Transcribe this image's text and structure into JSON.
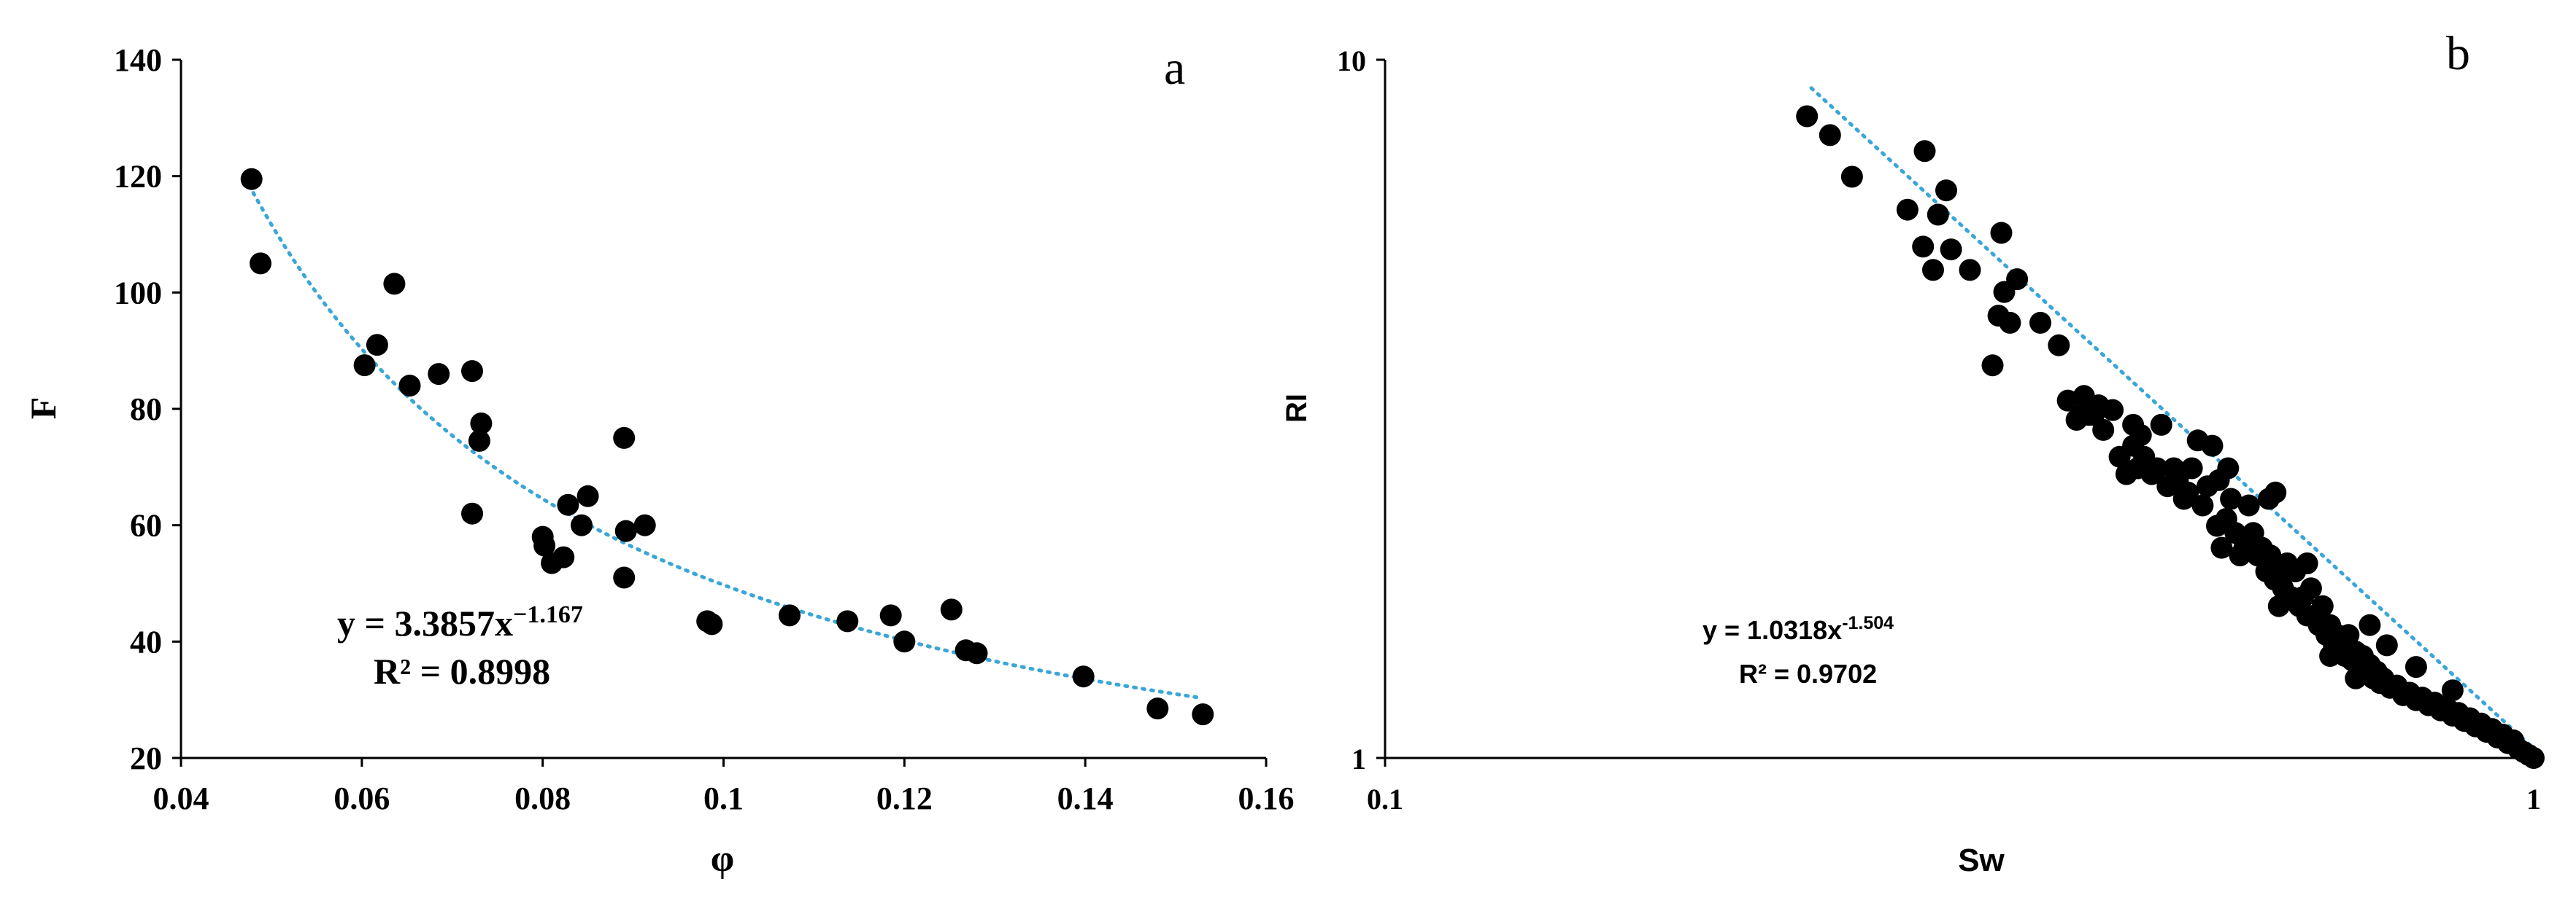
{
  "chart_data": [
    {
      "type": "scatter",
      "panel_label": "a",
      "xlabel": "φ",
      "ylabel": "F",
      "xlim": [
        0.04,
        0.16
      ],
      "ylim": [
        20,
        140
      ],
      "x_ticks": [
        "0.04",
        "0.06",
        "0.08",
        "0.1",
        "0.12",
        "0.14",
        "0.16"
      ],
      "y_ticks": [
        "20",
        "40",
        "60",
        "80",
        "100",
        "120",
        "140"
      ],
      "x_scale": "linear",
      "y_scale": "linear",
      "grid": false,
      "trendline": {
        "type": "power",
        "a": 3.3857,
        "b": -1.167,
        "x_range": [
          0.048,
          0.153
        ],
        "color": "#3aa6d8",
        "style": "dotted"
      },
      "annotation": {
        "eq_prefix": "y = 3.3857x",
        "eq_exp": "−1.167",
        "r2": "R² = 0.8998"
      },
      "points": [
        [
          0.0478,
          119.5
        ],
        [
          0.0488,
          105
        ],
        [
          0.0603,
          87.5
        ],
        [
          0.0617,
          91
        ],
        [
          0.0636,
          101.5
        ],
        [
          0.0653,
          84
        ],
        [
          0.0685,
          86
        ],
        [
          0.0722,
          86.5
        ],
        [
          0.0732,
          77.5
        ],
        [
          0.073,
          74.5
        ],
        [
          0.0722,
          62
        ],
        [
          0.08,
          58
        ],
        [
          0.0802,
          56.5
        ],
        [
          0.081,
          53.5
        ],
        [
          0.0823,
          54.5
        ],
        [
          0.0828,
          63.5
        ],
        [
          0.0843,
          60
        ],
        [
          0.085,
          65
        ],
        [
          0.089,
          75
        ],
        [
          0.0892,
          59
        ],
        [
          0.089,
          51
        ],
        [
          0.0913,
          60
        ],
        [
          0.0982,
          43.5
        ],
        [
          0.0987,
          43
        ],
        [
          0.1073,
          44.5
        ],
        [
          0.1137,
          43.5
        ],
        [
          0.1185,
          44.5
        ],
        [
          0.12,
          40
        ],
        [
          0.1252,
          45.5
        ],
        [
          0.1268,
          38.5
        ],
        [
          0.128,
          38
        ],
        [
          0.1398,
          34
        ],
        [
          0.148,
          28.5
        ],
        [
          0.153,
          27.5
        ]
      ]
    },
    {
      "type": "scatter",
      "panel_label": "b",
      "xlabel": "Sw",
      "ylabel": "RI",
      "xlim": [
        0.1,
        1
      ],
      "ylim": [
        1,
        10
      ],
      "x_ticks": [
        "0.1",
        "1"
      ],
      "y_ticks": [
        "1",
        "10"
      ],
      "x_scale": "log",
      "y_scale": "log",
      "grid": false,
      "trendline": {
        "type": "power",
        "a": 1.0318,
        "b": -1.504,
        "x_range": [
          0.235,
          1.0
        ],
        "color": "#3aa6d8",
        "style": "dotted"
      },
      "annotation": {
        "eq_prefix": "y = 1.0318x",
        "eq_exp": "-1.504",
        "r2": "R² = 0.9702"
      },
      "points": [
        [
          0.233,
          8.3
        ],
        [
          0.244,
          7.8
        ],
        [
          0.255,
          6.8
        ],
        [
          0.285,
          6.1
        ],
        [
          0.295,
          7.4
        ],
        [
          0.294,
          5.4
        ],
        [
          0.3,
          5.0
        ],
        [
          0.303,
          6.0
        ],
        [
          0.308,
          6.5
        ],
        [
          0.311,
          5.35
        ],
        [
          0.323,
          5.0
        ],
        [
          0.338,
          3.65
        ],
        [
          0.342,
          4.3
        ],
        [
          0.344,
          5.65
        ],
        [
          0.346,
          4.65
        ],
        [
          0.35,
          4.2
        ],
        [
          0.355,
          4.85
        ],
        [
          0.372,
          4.2
        ],
        [
          0.386,
          3.9
        ],
        [
          0.393,
          3.25
        ],
        [
          0.4,
          3.05
        ],
        [
          0.406,
          3.3
        ],
        [
          0.41,
          3.1
        ],
        [
          0.414,
          3.1
        ],
        [
          0.418,
          3.2
        ],
        [
          0.422,
          2.95
        ],
        [
          0.43,
          3.15
        ],
        [
          0.436,
          2.7
        ],
        [
          0.442,
          2.55
        ],
        [
          0.448,
          2.8
        ],
        [
          0.452,
          2.6
        ],
        [
          0.458,
          2.7
        ],
        [
          0.465,
          2.55
        ],
        [
          0.47,
          2.6
        ],
        [
          0.474,
          3.0
        ],
        [
          0.48,
          2.45
        ],
        [
          0.486,
          2.6
        ],
        [
          0.49,
          2.5
        ],
        [
          0.496,
          2.35
        ],
        [
          0.5,
          2.4
        ],
        [
          0.504,
          2.6
        ],
        [
          0.51,
          2.85
        ],
        [
          0.515,
          2.3
        ],
        [
          0.52,
          2.45
        ],
        [
          0.525,
          2.8
        ],
        [
          0.53,
          2.15
        ],
        [
          0.535,
          2.0
        ],
        [
          0.54,
          2.2
        ],
        [
          0.545,
          2.35
        ],
        [
          0.55,
          2.1
        ],
        [
          0.555,
          1.95
        ],
        [
          0.56,
          2.0
        ],
        [
          0.565,
          2.3
        ],
        [
          0.57,
          2.1
        ],
        [
          0.575,
          1.95
        ],
        [
          0.58,
          2.0
        ],
        [
          0.585,
          1.85
        ],
        [
          0.59,
          1.95
        ],
        [
          0.595,
          1.8
        ],
        [
          0.6,
          1.85
        ],
        [
          0.605,
          1.75
        ],
        [
          0.61,
          1.9
        ],
        [
          0.615,
          1.7
        ],
        [
          0.62,
          1.85
        ],
        [
          0.625,
          1.65
        ],
        [
          0.63,
          1.7
        ],
        [
          0.635,
          1.6
        ],
        [
          0.64,
          1.75
        ],
        [
          0.645,
          1.6
        ],
        [
          0.65,
          1.55
        ],
        [
          0.655,
          1.65
        ],
        [
          0.66,
          1.5
        ],
        [
          0.665,
          1.55
        ],
        [
          0.67,
          1.45
        ],
        [
          0.675,
          1.5
        ],
        [
          0.68,
          1.45
        ],
        [
          0.685,
          1.4
        ],
        [
          0.69,
          1.5
        ],
        [
          0.695,
          1.38
        ],
        [
          0.7,
          1.42
        ],
        [
          0.705,
          1.35
        ],
        [
          0.71,
          1.4
        ],
        [
          0.715,
          1.32
        ],
        [
          0.72,
          1.36
        ],
        [
          0.725,
          1.3
        ],
        [
          0.73,
          1.33
        ],
        [
          0.735,
          1.28
        ],
        [
          0.74,
          1.3
        ],
        [
          0.75,
          1.26
        ],
        [
          0.76,
          1.27
        ],
        [
          0.77,
          1.23
        ],
        [
          0.78,
          1.24
        ],
        [
          0.79,
          1.21
        ],
        [
          0.8,
          1.22
        ],
        [
          0.81,
          1.19
        ],
        [
          0.82,
          1.2
        ],
        [
          0.83,
          1.17
        ],
        [
          0.84,
          1.18
        ],
        [
          0.85,
          1.15
        ],
        [
          0.86,
          1.16
        ],
        [
          0.87,
          1.13
        ],
        [
          0.88,
          1.14
        ],
        [
          0.89,
          1.11
        ],
        [
          0.9,
          1.12
        ],
        [
          0.91,
          1.09
        ],
        [
          0.92,
          1.1
        ],
        [
          0.93,
          1.07
        ],
        [
          0.94,
          1.08
        ],
        [
          0.95,
          1.05
        ],
        [
          0.96,
          1.06
        ],
        [
          0.97,
          1.03
        ],
        [
          0.98,
          1.02
        ],
        [
          0.99,
          1.01
        ],
        [
          1.0,
          1.0
        ],
        [
          0.405,
          3.1
        ],
        [
          0.448,
          3.0
        ],
        [
          0.455,
          2.9
        ],
        [
          0.532,
          2.5
        ],
        [
          0.542,
          2.6
        ],
        [
          0.588,
          2.35
        ],
        [
          0.596,
          2.4
        ],
        [
          0.635,
          1.9
        ],
        [
          0.665,
          1.4
        ],
        [
          0.72,
          1.55
        ],
        [
          0.745,
          1.45
        ],
        [
          0.79,
          1.35
        ],
        [
          0.85,
          1.25
        ],
        [
          0.7,
          1.3
        ],
        [
          0.6,
          1.65
        ]
      ]
    }
  ]
}
